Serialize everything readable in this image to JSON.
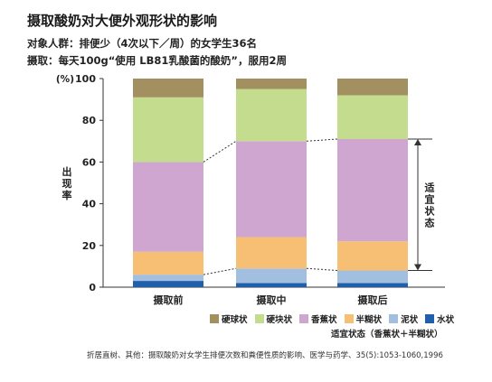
{
  "title": "摄取酸奶对大便外观形状的影响",
  "subtitle1": "对象人群：排便少（4次以下／周）的女学生36名",
  "subtitle2": "摄取：每天100g“使用 LB81乳酸菌的酸奶”，服用2周",
  "source": "折居直树、其他：摄取酸奶对女学生排便次数和粪便性质的影响、医学与药学、35(5):1053-1060,1996",
  "legend_note": "适宜状态（香蕉状＋半糊状）",
  "bracket_label": "适宜状态",
  "colors": {
    "硬球状": "#a39060",
    "硬块状": "#c4dc8e",
    "香蕉状": "#cfa6cf",
    "半糊状": "#f6bf74",
    "泥状": "#a3bfe0",
    "水状": "#1f5fab"
  },
  "chart_data": {
    "type": "bar",
    "stacked": true,
    "categories": [
      "摄取前",
      "摄取中",
      "摄取后"
    ],
    "ylabel": "出现率",
    "yunit": "(%)",
    "ylim": [
      0,
      100
    ],
    "yticks": [
      0,
      20,
      40,
      60,
      80,
      100
    ],
    "series": [
      {
        "name": "水状",
        "values": [
          3,
          2,
          2
        ]
      },
      {
        "name": "泥状",
        "values": [
          3,
          7,
          6
        ]
      },
      {
        "name": "半糊状",
        "values": [
          11,
          15,
          14
        ]
      },
      {
        "name": "香蕉状",
        "values": [
          43,
          46,
          49
        ]
      },
      {
        "name": "硬块状",
        "values": [
          31,
          25,
          21
        ]
      },
      {
        "name": "硬球状",
        "values": [
          9,
          5,
          8
        ]
      }
    ],
    "legend_order": [
      "硬球状",
      "硬块状",
      "香蕉状",
      "半糊状",
      "泥状",
      "水状"
    ],
    "legend_placement": "bottom"
  }
}
